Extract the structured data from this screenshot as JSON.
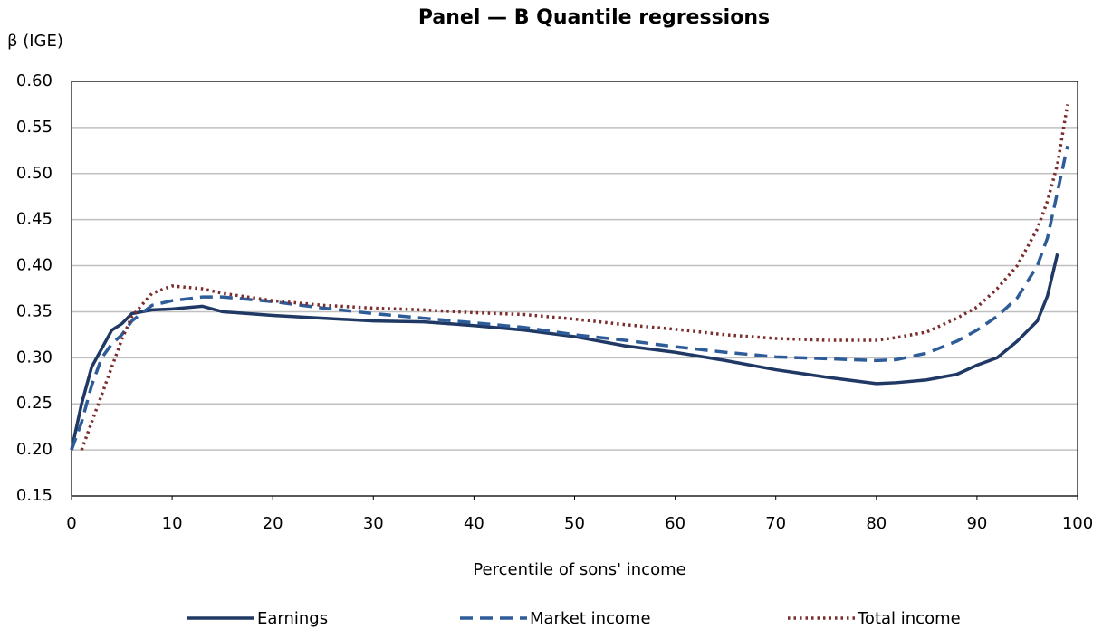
{
  "chart_data": {
    "type": "line",
    "title": "Panel — B Quantile regressions",
    "y_label": "β (IGE)",
    "x_label": "Percentile of sons' income",
    "x": [
      0,
      1,
      2,
      3,
      4,
      5,
      6,
      8,
      10,
      13,
      15,
      20,
      25,
      30,
      35,
      40,
      45,
      50,
      55,
      60,
      65,
      70,
      75,
      80,
      82,
      85,
      88,
      90,
      92,
      94,
      96,
      97,
      98,
      99
    ],
    "series": [
      {
        "name": "Earnings",
        "color": "#1f3864",
        "dash": "solid",
        "values": [
          0.2,
          0.25,
          0.29,
          0.31,
          0.33,
          0.337,
          0.348,
          0.352,
          0.353,
          0.356,
          0.35,
          0.346,
          0.343,
          0.34,
          0.339,
          0.335,
          0.33,
          0.323,
          0.313,
          0.306,
          0.297,
          0.287,
          0.279,
          0.272,
          0.273,
          0.276,
          0.282,
          0.292,
          0.3,
          0.318,
          0.34,
          0.367,
          0.413,
          null
        ]
      },
      {
        "name": "Market income",
        "color": "#2e5c99",
        "dash": "dashed",
        "values": [
          0.2,
          0.23,
          0.27,
          0.3,
          0.315,
          0.325,
          0.34,
          0.357,
          0.362,
          0.366,
          0.366,
          0.361,
          0.354,
          0.348,
          0.343,
          0.338,
          0.333,
          0.325,
          0.319,
          0.312,
          0.306,
          0.301,
          0.299,
          0.297,
          0.298,
          0.305,
          0.318,
          0.33,
          0.345,
          0.365,
          0.4,
          0.43,
          0.48,
          0.53
        ]
      },
      {
        "name": "Total income",
        "color": "#7b2d2d",
        "dash": "dotted",
        "values": [
          null,
          0.2,
          0.23,
          0.26,
          0.29,
          0.32,
          0.345,
          0.37,
          0.378,
          0.375,
          0.37,
          0.362,
          0.357,
          0.354,
          0.352,
          0.349,
          0.347,
          0.342,
          0.336,
          0.331,
          0.325,
          0.321,
          0.319,
          0.319,
          0.322,
          0.328,
          0.343,
          0.355,
          0.375,
          0.4,
          0.44,
          0.47,
          0.51,
          0.575
        ]
      }
    ],
    "xlim": [
      0,
      100
    ],
    "xticks": [
      0,
      10,
      20,
      30,
      40,
      50,
      60,
      70,
      80,
      90,
      100
    ],
    "ylim": [
      0.15,
      0.6
    ],
    "yticks": [
      0.15,
      {
        "value": 0.2,
        "label": "0.20"
      },
      0.25,
      {
        "value": 0.3,
        "label": "0.30"
      },
      0.35,
      {
        "value": 0.4,
        "label": "0.40"
      },
      0.45,
      {
        "value": 0.5,
        "label": "0.50"
      },
      0.55,
      {
        "value": 0.6,
        "label": "0.60"
      }
    ],
    "grid": true,
    "legend": "bottom"
  }
}
